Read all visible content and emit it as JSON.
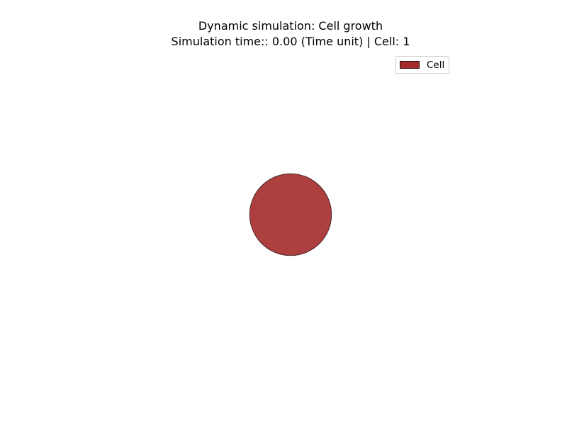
{
  "chart_data": {
    "type": "scatter",
    "title": "Dynamic simulation: Cell growth",
    "subtitle": "Simulation time:: 0.00 (Time unit) | Cell: 1",
    "xlabel": "",
    "ylabel": "",
    "grid": false,
    "axes_visible": false,
    "legend": {
      "placement": "top-right",
      "entries": [
        {
          "label": "Cell",
          "color": "#a62b2b"
        }
      ]
    },
    "series": [
      {
        "name": "Cell",
        "color": "#ae3f3f",
        "edge_color": "#2a1a1a",
        "points": [
          {
            "x": 0,
            "y": 0,
            "r": 1
          }
        ]
      }
    ],
    "xlim": [
      -5,
      5
    ],
    "ylim": [
      -5,
      5
    ]
  }
}
